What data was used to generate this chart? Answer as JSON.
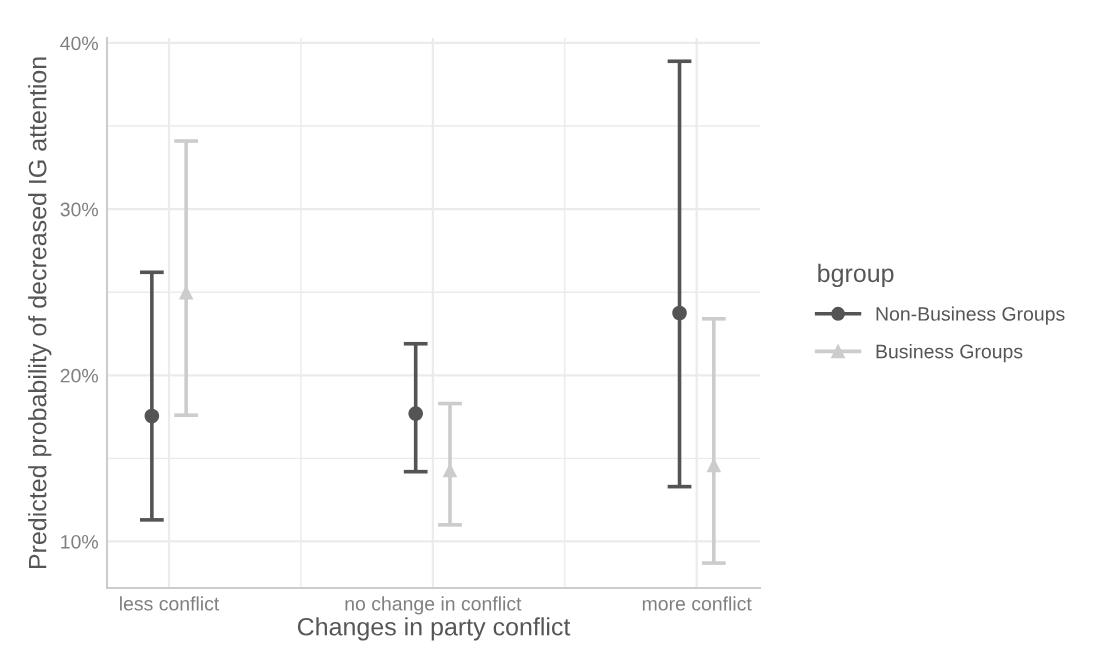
{
  "chart_data": {
    "type": "scatter",
    "xlabel": "Changes in party conflict",
    "ylabel": "Predicted probability of decreased IG attention",
    "legend_title": "bgroup",
    "categories": [
      "less conflict",
      "no change in conflict",
      "more conflict"
    ],
    "series": [
      {
        "name": "Non-Business Groups",
        "color": "#545454",
        "marker": "circle",
        "values": [
          17.55,
          17.7,
          23.75
        ],
        "errors": [
          [
            11.3,
            26.2
          ],
          [
            14.2,
            21.9
          ],
          [
            13.3,
            38.9
          ]
        ]
      },
      {
        "name": "Business Groups",
        "color": "#cccccc",
        "marker": "triangle",
        "values": [
          25.0,
          14.3,
          14.6
        ],
        "errors": [
          [
            17.6,
            34.1
          ],
          [
            11.0,
            18.3
          ],
          [
            8.7,
            23.4
          ]
        ]
      }
    ],
    "ylim": [
      7.2,
      40.3
    ],
    "yticks": [
      {
        "value": 10,
        "label": "10%"
      },
      {
        "value": 15,
        "label": null
      },
      {
        "value": 20,
        "label": "20%"
      },
      {
        "value": 25,
        "label": null
      },
      {
        "value": 30,
        "label": "30%"
      },
      {
        "value": 35,
        "label": null
      },
      {
        "value": 40,
        "label": "40%"
      }
    ],
    "grid": true,
    "legend": "right",
    "line_style": "solid"
  }
}
